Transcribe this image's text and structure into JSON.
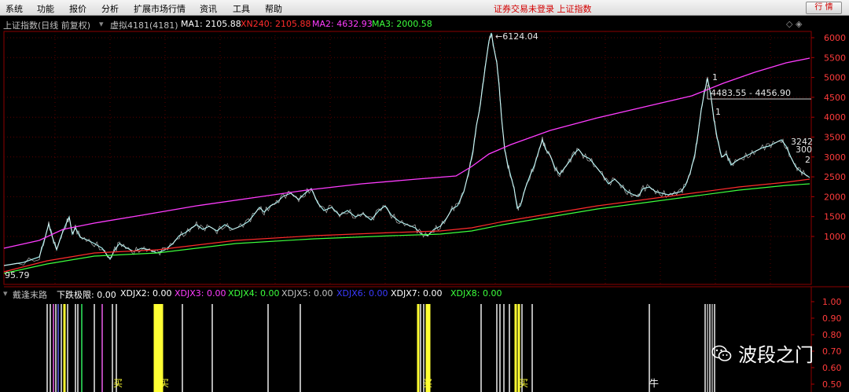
{
  "menubar": {
    "items": [
      "系统",
      "功能",
      "报价",
      "分析",
      "扩展市场行情",
      "资讯",
      "工具",
      "帮助"
    ],
    "status": "证券交易未登录 上证指数",
    "quote_button": "行 情"
  },
  "infobar": {
    "title": "上证指数(日线 前复权)",
    "virtual": "虚拟4181(4181)",
    "ma1": "MA1: 2105.88",
    "xn240": "XN240: 2105.88",
    "ma2": "MA2: 4632.93",
    "ma3": "MA3: 2000.58",
    "corner_icons": "◇ ◈",
    "colors": {
      "title": "#c0c0c0",
      "ma1": "#ffffff",
      "xn240": "#ff2b2b",
      "ma2": "#ff3cff",
      "ma3": "#3cff3c"
    }
  },
  "chart_data": [
    {
      "type": "line",
      "title": "",
      "y_axis_ticks": [
        "6000",
        "5500",
        "5000",
        "4500",
        "4000",
        "3500",
        "3000",
        "2500",
        "2000",
        "1500",
        "1000"
      ],
      "ylim": [
        95.79,
        6124.04
      ],
      "annotations": [
        "6124.04",
        "4483.55 - 4456.90",
        "95.79",
        "3242",
        "300",
        "2",
        "1",
        "1"
      ],
      "series": [
        {
          "name": "MA1",
          "color": "#ffffff"
        },
        {
          "name": "XN240",
          "color": "#ff2b2b"
        },
        {
          "name": "MA2",
          "color": "#ff3cff"
        },
        {
          "name": "MA3",
          "color": "#3cff3c"
        }
      ]
    },
    {
      "type": "bar",
      "title": "",
      "y_axis_ticks": [
        "1.00",
        "0.90",
        "0.80",
        "0.70",
        "0.60",
        "0.50"
      ],
      "ylim": [
        0.5,
        1.0
      ]
    }
  ],
  "subinfo": {
    "name": "戴逢末路",
    "items": [
      {
        "label": "下跌极限: 0.00",
        "color": "#ffffff"
      },
      {
        "label": "XDJX2: 0.00",
        "color": "#ffffff"
      },
      {
        "label": "XDJX3: 0.00",
        "color": "#ff3cff"
      },
      {
        "label": "XDJX4: 0.00",
        "color": "#3cff3c"
      },
      {
        "label": "XDJX5: 0.00",
        "color": "#c0c0c0"
      },
      {
        "label": "XDJX6: 0.00",
        "color": "#3a3aff"
      },
      {
        "label": "XDJX7: 0.00",
        "color": "#ffffff"
      },
      {
        "label": "XDJX8: 0.00",
        "color": "#3cff3c"
      }
    ],
    "bottom_glyphs": [
      "买",
      "买",
      "买",
      "买",
      "牛"
    ]
  },
  "watermark": {
    "text": "波段之门",
    "icon": "wechat-icon"
  }
}
